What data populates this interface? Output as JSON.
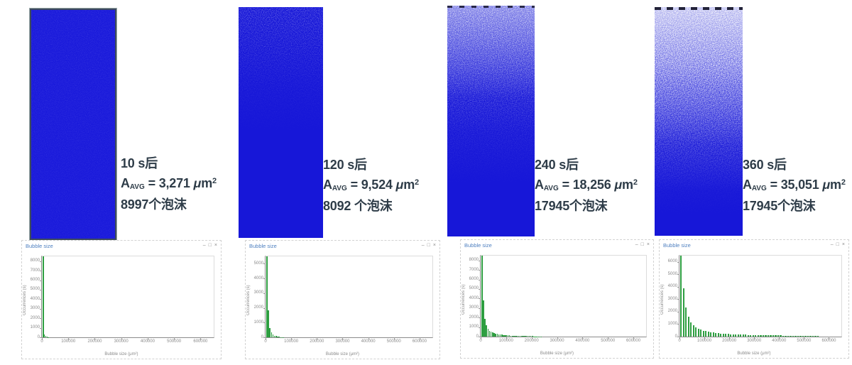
{
  "ui": {
    "window_controls": {
      "minimize": "–",
      "maximize": "□",
      "close": "×"
    }
  },
  "columns": [
    {
      "time_label": "10 s后",
      "area_symbol": "A",
      "area_symbol_sub": "AVG",
      "equals": "=",
      "area_value": "3,271",
      "unit_mu": "μ",
      "unit_m": "m",
      "unit_sup": "2",
      "count_label": "8997个泡沫"
    },
    {
      "time_label": "120 s后",
      "area_symbol": "A",
      "area_symbol_sub": "AVG",
      "equals": "=",
      "area_value": "9,524",
      "unit_mu": "μ",
      "unit_m": "m",
      "unit_sup": "2",
      "count_label": "8092 个泡沫"
    },
    {
      "time_label": "240 s后",
      "area_symbol": "A",
      "area_symbol_sub": "AVG",
      "equals": "=",
      "area_value": "18,256",
      "unit_mu": "μ",
      "unit_m": "m",
      "unit_sup": "2",
      "count_label": "17945个泡沫"
    },
    {
      "time_label": "360 s后",
      "area_symbol": "A",
      "area_symbol_sub": "AVG",
      "equals": "=",
      "area_value": "35,051",
      "unit_mu": "μ",
      "unit_m": "m",
      "unit_sup": "2",
      "count_label": "17945个泡沫"
    }
  ],
  "chart_data": [
    {
      "type": "bar",
      "title": "Bubble size",
      "xlabel": "Bubble size (μm²)",
      "ylabel": "Occurrences (s)",
      "xlim": [
        0,
        650000
      ],
      "ylim": [
        0,
        8500
      ],
      "ytick_step": 1000,
      "xticks": [
        0,
        100000,
        200000,
        300000,
        400000,
        500000,
        600000
      ],
      "bin_width": 5000,
      "bar_color": "#2e9e41",
      "grid": false,
      "legend": "none",
      "values": [
        9200,
        270,
        130,
        60,
        25
      ]
    },
    {
      "type": "bar",
      "title": "Bubble size",
      "xlabel": "Bubble size (μm²)",
      "ylabel": "Occurrences (s)",
      "xlim": [
        0,
        650000
      ],
      "ylim": [
        0,
        5500
      ],
      "ytick_step": 1000,
      "xticks": [
        0,
        100000,
        200000,
        300000,
        400000,
        500000,
        600000
      ],
      "bin_width": 6000,
      "bar_color": "#2e9e41",
      "grid": false,
      "legend": "none",
      "values": [
        5900,
        1850,
        640,
        345,
        190,
        115,
        75,
        50,
        34,
        23,
        16,
        11
      ]
    },
    {
      "type": "bar",
      "title": "Bubble size",
      "xlabel": "Bubble size (μm²)",
      "ylabel": "Occurrences (s)",
      "xlim": [
        0,
        650000
      ],
      "ylim": [
        0,
        8500
      ],
      "ytick_step": 1000,
      "xticks": [
        0,
        100000,
        200000,
        300000,
        400000,
        500000,
        600000
      ],
      "bin_width": 6000,
      "bar_color": "#2e9e41",
      "grid": false,
      "legend": "none",
      "values": [
        8900,
        3800,
        1850,
        1160,
        800,
        610,
        495,
        415,
        355,
        308,
        270,
        238,
        211,
        189,
        170,
        153,
        139,
        126,
        115,
        105,
        97,
        89,
        82,
        76,
        71,
        66,
        61,
        57,
        54,
        50,
        47,
        44,
        42,
        39,
        37,
        35,
        33,
        31,
        30,
        28
      ]
    },
    {
      "type": "bar",
      "title": "Bubble size",
      "xlabel": "Bubble size (μm²)",
      "ylabel": "Occurrences (s)",
      "xlim": [
        0,
        650000
      ],
      "ylim": [
        0,
        6500
      ],
      "ytick_step": 1000,
      "xticks": [
        0,
        100000,
        200000,
        300000,
        400000,
        500000,
        600000
      ],
      "bin_width": 10000,
      "bar_color": "#2e9e41",
      "grid": false,
      "legend": "none",
      "values": [
        6900,
        3850,
        2360,
        1570,
        1160,
        915,
        750,
        635,
        550,
        483,
        430,
        387,
        351,
        321,
        295,
        273,
        253,
        236,
        221,
        208,
        196,
        185,
        175,
        166,
        158,
        151,
        144,
        138,
        132,
        127,
        122,
        117,
        113,
        109,
        105,
        102,
        98,
        95,
        92,
        90,
        87,
        85,
        82,
        80,
        78,
        76,
        74,
        72,
        71,
        69,
        68,
        66,
        65,
        63,
        62,
        61
      ]
    }
  ]
}
